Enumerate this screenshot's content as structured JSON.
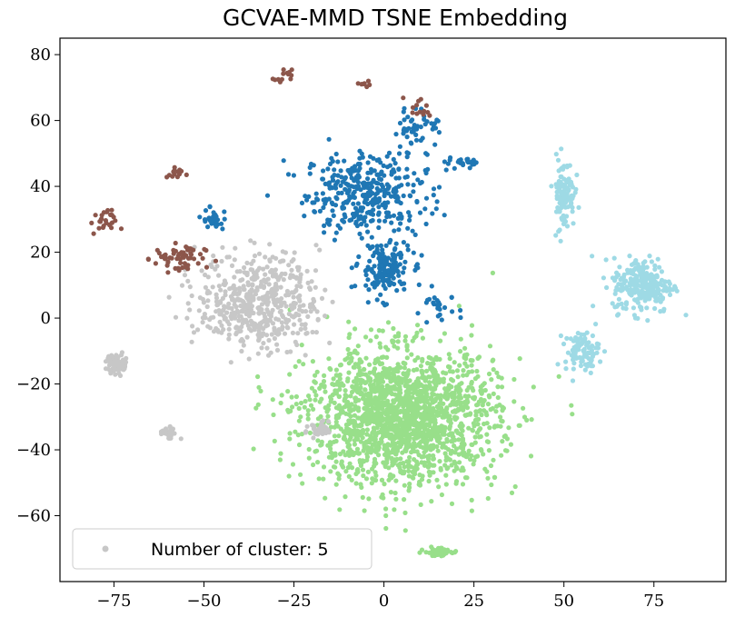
{
  "chart_data": {
    "type": "scatter",
    "title": "GCVAE-MMD TSNE Embedding",
    "xlabel": "",
    "ylabel": "",
    "xlim": [
      -90,
      95
    ],
    "ylim": [
      -80,
      85
    ],
    "x_ticks": [
      -75,
      -50,
      -25,
      0,
      25,
      50,
      75
    ],
    "y_ticks": [
      -60,
      -40,
      -20,
      0,
      20,
      40,
      60,
      80
    ],
    "x_tick_labels": [
      "−75",
      "−50",
      "−25",
      "0",
      "25",
      "50",
      "75"
    ],
    "y_tick_labels": [
      "−60",
      "−40",
      "−20",
      "0",
      "20",
      "40",
      "60",
      "80"
    ],
    "grid": false,
    "legend": {
      "position": "lower-left",
      "entries": [
        {
          "label": "Number of cluster: 5",
          "color": "#c7c7c7"
        }
      ]
    },
    "series": [
      {
        "color": "#1f77b4",
        "approximate_count": 650,
        "regions": [
          {
            "center": [
              -5,
              38
            ],
            "spread": [
              14,
              10
            ],
            "share": 0.55
          },
          {
            "center": [
              0,
              15
            ],
            "spread": [
              6,
              7
            ],
            "share": 0.25
          },
          {
            "center": [
              10,
              58
            ],
            "spread": [
              5,
              5
            ],
            "share": 0.07
          },
          {
            "center": [
              -47,
              30
            ],
            "spread": [
              3,
              3
            ],
            "share": 0.05
          },
          {
            "center": [
              22,
              47
            ],
            "spread": [
              4,
              1
            ],
            "share": 0.04
          },
          {
            "center": [
              15,
              3
            ],
            "spread": [
              5,
              4
            ],
            "share": 0.04
          }
        ]
      },
      {
        "color": "#98df8a",
        "approximate_count": 1900,
        "regions": [
          {
            "center": [
              5,
              -30
            ],
            "spread": [
              22,
              17
            ],
            "share": 0.96
          },
          {
            "center": [
              15,
              -71
            ],
            "spread": [
              3,
              1
            ],
            "share": 0.04
          }
        ]
      },
      {
        "color": "#c7c7c7",
        "approximate_count": 640,
        "regions": [
          {
            "center": [
              -35,
              5
            ],
            "spread": [
              14,
              12
            ],
            "share": 0.8
          },
          {
            "center": [
              -74,
              -14
            ],
            "spread": [
              2.5,
              2.5
            ],
            "share": 0.1
          },
          {
            "center": [
              -60,
              -35
            ],
            "spread": [
              2,
              2
            ],
            "share": 0.04
          },
          {
            "center": [
              -18,
              -34
            ],
            "spread": [
              3,
              2
            ],
            "share": 0.06
          }
        ]
      },
      {
        "color": "#8c564b",
        "approximate_count": 130,
        "regions": [
          {
            "center": [
              -57,
              18
            ],
            "spread": [
              6,
              4
            ],
            "share": 0.45
          },
          {
            "center": [
              -78,
              29
            ],
            "spread": [
              3,
              3
            ],
            "share": 0.2
          },
          {
            "center": [
              -58,
              44
            ],
            "spread": [
              2,
              2
            ],
            "share": 0.1
          },
          {
            "center": [
              -28,
              73
            ],
            "spread": [
              2,
              2
            ],
            "share": 0.1
          },
          {
            "center": [
              -5,
              71
            ],
            "spread": [
              2,
              1
            ],
            "share": 0.05
          },
          {
            "center": [
              10,
              64
            ],
            "spread": [
              3,
              3
            ],
            "share": 0.1
          }
        ]
      },
      {
        "color": "#9edae5",
        "approximate_count": 450,
        "regions": [
          {
            "center": [
              72,
              10
            ],
            "spread": [
              7,
              7
            ],
            "share": 0.55
          },
          {
            "center": [
              50,
              38
            ],
            "spread": [
              2.5,
              9
            ],
            "share": 0.25
          },
          {
            "center": [
              55,
              -10
            ],
            "spread": [
              4,
              5
            ],
            "share": 0.2
          }
        ]
      }
    ]
  }
}
